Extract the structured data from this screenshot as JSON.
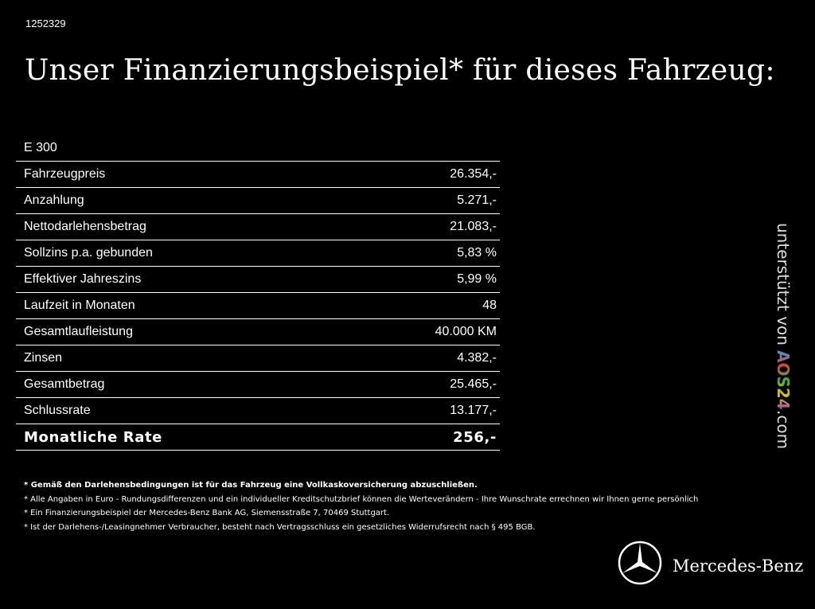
{
  "reference": "1252329",
  "title": "Unser Finanzierungsbeispiel* für dieses Fahrzeug:",
  "table": {
    "heading": "E 300",
    "rows": [
      [
        "Fahrzeugpreis",
        "26.354,-"
      ],
      [
        "Anzahlung",
        "5.271,-"
      ],
      [
        "Nettodarlehensbetrag",
        "21.083,-"
      ],
      [
        "Sollzins p.a. gebunden",
        "5,83 %"
      ],
      [
        "Effektiver Jahreszins",
        "5,99 %"
      ],
      [
        "Laufzeit in Monaten",
        "48"
      ],
      [
        "Gesamtlaufleistung",
        "40.000 KM"
      ],
      [
        "Zinsen",
        "4.382,-"
      ],
      [
        "Gesamtbetrag",
        "25.465,-"
      ],
      [
        "Schlussrate",
        "13.177,-"
      ],
      [
        "Monatliche Rate",
        "256,-"
      ]
    ]
  },
  "footnotes": [
    "* Gemäß den Darlehensbedingungen ist für das Fahrzeug eine Vollkaskoversicherung abzuschließen.",
    "* Alle Angaben in Euro - Rundungsdifferenzen und ein individueller Kreditschutzbrief können die Werteverändern - Ihre Wunschrate errechnen wir Ihnen gerne persönlich",
    "* Ein Finanzierungsbeispiel der Mercedes-Benz Bank AG, Siemensstraße 7, 70469 Stuttgart.",
    "* Ist der Darlehens-/Leasingnehmer Verbraucher, besteht nach Vertragsschluss ein gesetzliches Widerrufsrecht nach § 495 BGB."
  ],
  "side_note": {
    "prefix": "unterstützt von",
    "brand": "AOS24",
    "suffix": ".com"
  },
  "logo": "Mercedes-Benz"
}
